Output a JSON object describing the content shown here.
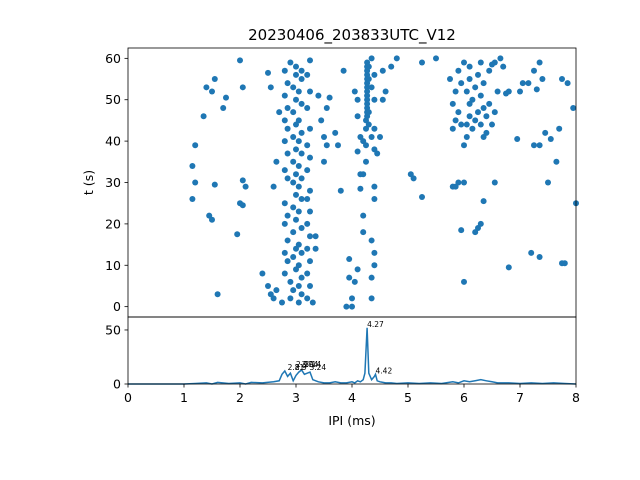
{
  "chart_data": [
    {
      "type": "scatter",
      "title": "20230406_203833UTC_V12",
      "xlabel": "",
      "ylabel": "t (s)",
      "xlim": [
        0,
        8
      ],
      "ylim": [
        62.5,
        -2.5
      ],
      "y_inverted": true,
      "yticks": [
        0,
        10,
        20,
        30,
        40,
        50,
        60
      ],
      "color": "#1f77b4",
      "points": [
        [
          1.15,
          26
        ],
        [
          1.2,
          30
        ],
        [
          1.15,
          34
        ],
        [
          1.2,
          39
        ],
        [
          1.35,
          46
        ],
        [
          1.4,
          53
        ],
        [
          1.45,
          22
        ],
        [
          1.5,
          21
        ],
        [
          1.55,
          29.5
        ],
        [
          1.6,
          3
        ],
        [
          1.55,
          55
        ],
        [
          1.5,
          52
        ],
        [
          1.7,
          48
        ],
        [
          1.75,
          50.5
        ],
        [
          1.95,
          17.5
        ],
        [
          2.0,
          25
        ],
        [
          2.05,
          24.5
        ],
        [
          2.05,
          30.5
        ],
        [
          2.1,
          29
        ],
        [
          2.05,
          53
        ],
        [
          2.0,
          59.5
        ],
        [
          2.4,
          8
        ],
        [
          2.5,
          5
        ],
        [
          2.55,
          3
        ],
        [
          2.6,
          2
        ],
        [
          2.65,
          4
        ],
        [
          2.6,
          29
        ],
        [
          2.65,
          35
        ],
        [
          2.5,
          56.5
        ],
        [
          2.55,
          53
        ],
        [
          2.7,
          47
        ],
        [
          2.75,
          1
        ],
        [
          2.8,
          8
        ],
        [
          2.85,
          11
        ],
        [
          2.8,
          13
        ],
        [
          2.85,
          16
        ],
        [
          2.8,
          20
        ],
        [
          2.85,
          22
        ],
        [
          2.8,
          25
        ],
        [
          2.85,
          31
        ],
        [
          2.8,
          33
        ],
        [
          2.85,
          37
        ],
        [
          2.8,
          40
        ],
        [
          2.85,
          43
        ],
        [
          2.8,
          45
        ],
        [
          2.85,
          48
        ],
        [
          2.8,
          51
        ],
        [
          2.85,
          54
        ],
        [
          2.8,
          57
        ],
        [
          2.9,
          59
        ],
        [
          2.9,
          2
        ],
        [
          2.95,
          4
        ],
        [
          2.9,
          6
        ],
        [
          3.0,
          9
        ],
        [
          2.95,
          12
        ],
        [
          3.0,
          14
        ],
        [
          2.95,
          18
        ],
        [
          3.0,
          21
        ],
        [
          2.95,
          24
        ],
        [
          3.0,
          27
        ],
        [
          2.95,
          30
        ],
        [
          3.0,
          32
        ],
        [
          2.95,
          35
        ],
        [
          3.0,
          38
        ],
        [
          2.95,
          41
        ],
        [
          3.0,
          44
        ],
        [
          2.95,
          47
        ],
        [
          3.0,
          50
        ],
        [
          2.95,
          53
        ],
        [
          3.0,
          56
        ],
        [
          3.0,
          58
        ],
        [
          3.05,
          1
        ],
        [
          3.1,
          3
        ],
        [
          3.05,
          5
        ],
        [
          3.1,
          7
        ],
        [
          3.05,
          10
        ],
        [
          3.1,
          13
        ],
        [
          3.05,
          15
        ],
        [
          3.1,
          19
        ],
        [
          3.05,
          23
        ],
        [
          3.1,
          26
        ],
        [
          3.05,
          29
        ],
        [
          3.1,
          31
        ],
        [
          3.05,
          34
        ],
        [
          3.1,
          37
        ],
        [
          3.05,
          40
        ],
        [
          3.1,
          42
        ],
        [
          3.05,
          45
        ],
        [
          3.1,
          49
        ],
        [
          3.05,
          52
        ],
        [
          3.1,
          55
        ],
        [
          3.1,
          57
        ],
        [
          3.2,
          2
        ],
        [
          3.25,
          5
        ],
        [
          3.2,
          8
        ],
        [
          3.25,
          11
        ],
        [
          3.2,
          14
        ],
        [
          3.25,
          17
        ],
        [
          3.2,
          20
        ],
        [
          3.25,
          23
        ],
        [
          3.2,
          26
        ],
        [
          3.25,
          28
        ],
        [
          3.2,
          33
        ],
        [
          3.25,
          36
        ],
        [
          3.2,
          39
        ],
        [
          3.25,
          43
        ],
        [
          3.2,
          48
        ],
        [
          3.25,
          52
        ],
        [
          3.2,
          56
        ],
        [
          3.25,
          59.5
        ],
        [
          3.35,
          14
        ],
        [
          3.35,
          17
        ],
        [
          3.3,
          1
        ],
        [
          3.4,
          51
        ],
        [
          3.45,
          45
        ],
        [
          3.5,
          35
        ],
        [
          3.5,
          41
        ],
        [
          3.55,
          39
        ],
        [
          3.55,
          48
        ],
        [
          3.6,
          50.5
        ],
        [
          3.7,
          42
        ],
        [
          3.75,
          39
        ],
        [
          3.8,
          28
        ],
        [
          3.85,
          57
        ],
        [
          3.9,
          0
        ],
        [
          3.95,
          11.5
        ],
        [
          3.95,
          7
        ],
        [
          4.0,
          0
        ],
        [
          4.0,
          2
        ],
        [
          4.05,
          6
        ],
        [
          4.1,
          9
        ],
        [
          4.15,
          32
        ],
        [
          4.1,
          46
        ],
        [
          4.05,
          52
        ],
        [
          4.1,
          50
        ],
        [
          4.15,
          41
        ],
        [
          4.1,
          37.5
        ],
        [
          4.15,
          28.5
        ],
        [
          4.2,
          32
        ],
        [
          4.2,
          40
        ],
        [
          4.2,
          18
        ],
        [
          4.2,
          22
        ],
        [
          4.25,
          35
        ],
        [
          4.25,
          39
        ],
        [
          4.25,
          43
        ],
        [
          4.25,
          45
        ],
        [
          4.27,
          46
        ],
        [
          4.27,
          47
        ],
        [
          4.27,
          48
        ],
        [
          4.27,
          49
        ],
        [
          4.27,
          50
        ],
        [
          4.27,
          51
        ],
        [
          4.27,
          52
        ],
        [
          4.27,
          53
        ],
        [
          4.27,
          54
        ],
        [
          4.27,
          55
        ],
        [
          4.27,
          56
        ],
        [
          4.27,
          57
        ],
        [
          4.27,
          58
        ],
        [
          4.27,
          59
        ],
        [
          4.3,
          44
        ],
        [
          4.3,
          47
        ],
        [
          4.3,
          55
        ],
        [
          4.3,
          58
        ],
        [
          4.35,
          41
        ],
        [
          4.35,
          53
        ],
        [
          4.35,
          60
        ],
        [
          4.4,
          38
        ],
        [
          4.4,
          43
        ],
        [
          4.4,
          50
        ],
        [
          4.4,
          56
        ],
        [
          4.35,
          2
        ],
        [
          4.35,
          7
        ],
        [
          4.4,
          10
        ],
        [
          4.4,
          13
        ],
        [
          4.35,
          16
        ],
        [
          4.4,
          26
        ],
        [
          4.4,
          29
        ],
        [
          4.45,
          37
        ],
        [
          4.5,
          41
        ],
        [
          4.55,
          50
        ],
        [
          4.6,
          52
        ],
        [
          4.55,
          57
        ],
        [
          4.7,
          58
        ],
        [
          4.8,
          60
        ],
        [
          5.05,
          32
        ],
        [
          5.1,
          31
        ],
        [
          5.25,
          26.5
        ],
        [
          5.25,
          59
        ],
        [
          5.5,
          60
        ],
        [
          5.75,
          55
        ],
        [
          5.8,
          43
        ],
        [
          5.85,
          45
        ],
        [
          5.8,
          49
        ],
        [
          5.85,
          52
        ],
        [
          5.9,
          47
        ],
        [
          5.95,
          44
        ],
        [
          5.9,
          57
        ],
        [
          5.95,
          54
        ],
        [
          5.8,
          29
        ],
        [
          6.0,
          59
        ],
        [
          5.95,
          18.5
        ],
        [
          6.0,
          6
        ],
        [
          6.0,
          39
        ],
        [
          6.05,
          41
        ],
        [
          6.05,
          44
        ],
        [
          6.1,
          46
        ],
        [
          6.1,
          49
        ],
        [
          6.05,
          52
        ],
        [
          6.1,
          55
        ],
        [
          6.1,
          58
        ],
        [
          6.15,
          43
        ],
        [
          6.15,
          50
        ],
        [
          6.2,
          45
        ],
        [
          6.2,
          53
        ],
        [
          6.25,
          47
        ],
        [
          6.25,
          56
        ],
        [
          6.3,
          44
        ],
        [
          6.3,
          51
        ],
        [
          6.3,
          59
        ],
        [
          6.35,
          41
        ],
        [
          6.35,
          48
        ],
        [
          6.35,
          54
        ],
        [
          6.4,
          42
        ],
        [
          6.4,
          46
        ],
        [
          6.45,
          49
        ],
        [
          6.45,
          57
        ],
        [
          6.5,
          44
        ],
        [
          6.55,
          47
        ],
        [
          6.55,
          59
        ],
        [
          6.6,
          52
        ],
        [
          6.65,
          60
        ],
        [
          5.85,
          29
        ],
        [
          5.9,
          30
        ],
        [
          6.0,
          30
        ],
        [
          6.2,
          18
        ],
        [
          6.25,
          19
        ],
        [
          6.3,
          20
        ],
        [
          6.35,
          25.5
        ],
        [
          6.55,
          30
        ],
        [
          6.5,
          58.5
        ],
        [
          6.7,
          58
        ],
        [
          6.75,
          51.5
        ],
        [
          6.8,
          52
        ],
        [
          6.8,
          9.5
        ],
        [
          7.0,
          52
        ],
        [
          7.05,
          54
        ],
        [
          7.15,
          54
        ],
        [
          7.25,
          57
        ],
        [
          7.3,
          52.5
        ],
        [
          7.35,
          59
        ],
        [
          7.4,
          55
        ],
        [
          7.2,
          13
        ],
        [
          7.35,
          12
        ],
        [
          7.5,
          30
        ],
        [
          7.45,
          42
        ],
        [
          7.35,
          39
        ],
        [
          7.55,
          40.5
        ],
        [
          7.65,
          35
        ],
        [
          7.7,
          43
        ],
        [
          7.75,
          10.5
        ],
        [
          7.8,
          10.5
        ],
        [
          7.75,
          55
        ],
        [
          7.85,
          54
        ],
        [
          8.0,
          25
        ],
        [
          7.95,
          48
        ],
        [
          6.95,
          40.5
        ],
        [
          7.25,
          39
        ]
      ]
    },
    {
      "type": "line",
      "xlabel": "IPI (ms)",
      "ylabel": "",
      "xlim": [
        0,
        8
      ],
      "ylim": [
        0,
        62
      ],
      "xticks": [
        0,
        1,
        2,
        3,
        4,
        5,
        6,
        7,
        8
      ],
      "yticks": [
        0,
        50
      ],
      "color": "#1f77b4",
      "x": [
        0,
        0.5,
        1.0,
        1.2,
        1.4,
        1.5,
        1.6,
        1.8,
        2.0,
        2.1,
        2.2,
        2.4,
        2.6,
        2.7,
        2.75,
        2.8,
        2.85,
        2.9,
        2.95,
        3.0,
        3.05,
        3.1,
        3.15,
        3.2,
        3.25,
        3.3,
        3.4,
        3.5,
        3.6,
        3.7,
        3.8,
        3.9,
        4.0,
        4.05,
        4.1,
        4.15,
        4.2,
        4.23,
        4.27,
        4.3,
        4.35,
        4.4,
        4.42,
        4.45,
        4.5,
        4.6,
        4.7,
        4.8,
        5.0,
        5.2,
        5.4,
        5.6,
        5.8,
        5.9,
        6.0,
        6.1,
        6.2,
        6.3,
        6.4,
        6.5,
        6.6,
        6.8,
        7.0,
        7.2,
        7.4,
        7.6,
        7.8,
        8.0
      ],
      "y": [
        0,
        0,
        0,
        0.5,
        1,
        0,
        1.5,
        0.5,
        1,
        0,
        1.5,
        1,
        2,
        3,
        9,
        12,
        7,
        10,
        3,
        8,
        11,
        13,
        9,
        10,
        11,
        4,
        2,
        1,
        1,
        2,
        1,
        1,
        2,
        1,
        3,
        2,
        4,
        10,
        52,
        10,
        4,
        7,
        9,
        3,
        2,
        1,
        1,
        0.5,
        1,
        0.5,
        1,
        0.5,
        2,
        1,
        3,
        2,
        3,
        4,
        3,
        2,
        1,
        1,
        0.5,
        1,
        0.5,
        1,
        0.5,
        0
      ],
      "peak_labels": [
        {
          "x": 2.85,
          "y": 12,
          "text": "2.81"
        },
        {
          "x": 2.98,
          "y": 12,
          "text": "2.9"
        },
        {
          "x": 3.0,
          "y": 15,
          "text": "2.97"
        },
        {
          "x": 3.1,
          "y": 15,
          "text": "3.04"
        },
        {
          "x": 3.15,
          "y": 15,
          "text": "3.14"
        },
        {
          "x": 3.24,
          "y": 12,
          "text": "3.24"
        },
        {
          "x": 4.27,
          "y": 52,
          "text": "4.27"
        },
        {
          "x": 4.42,
          "y": 9,
          "text": "4.42"
        }
      ]
    }
  ]
}
